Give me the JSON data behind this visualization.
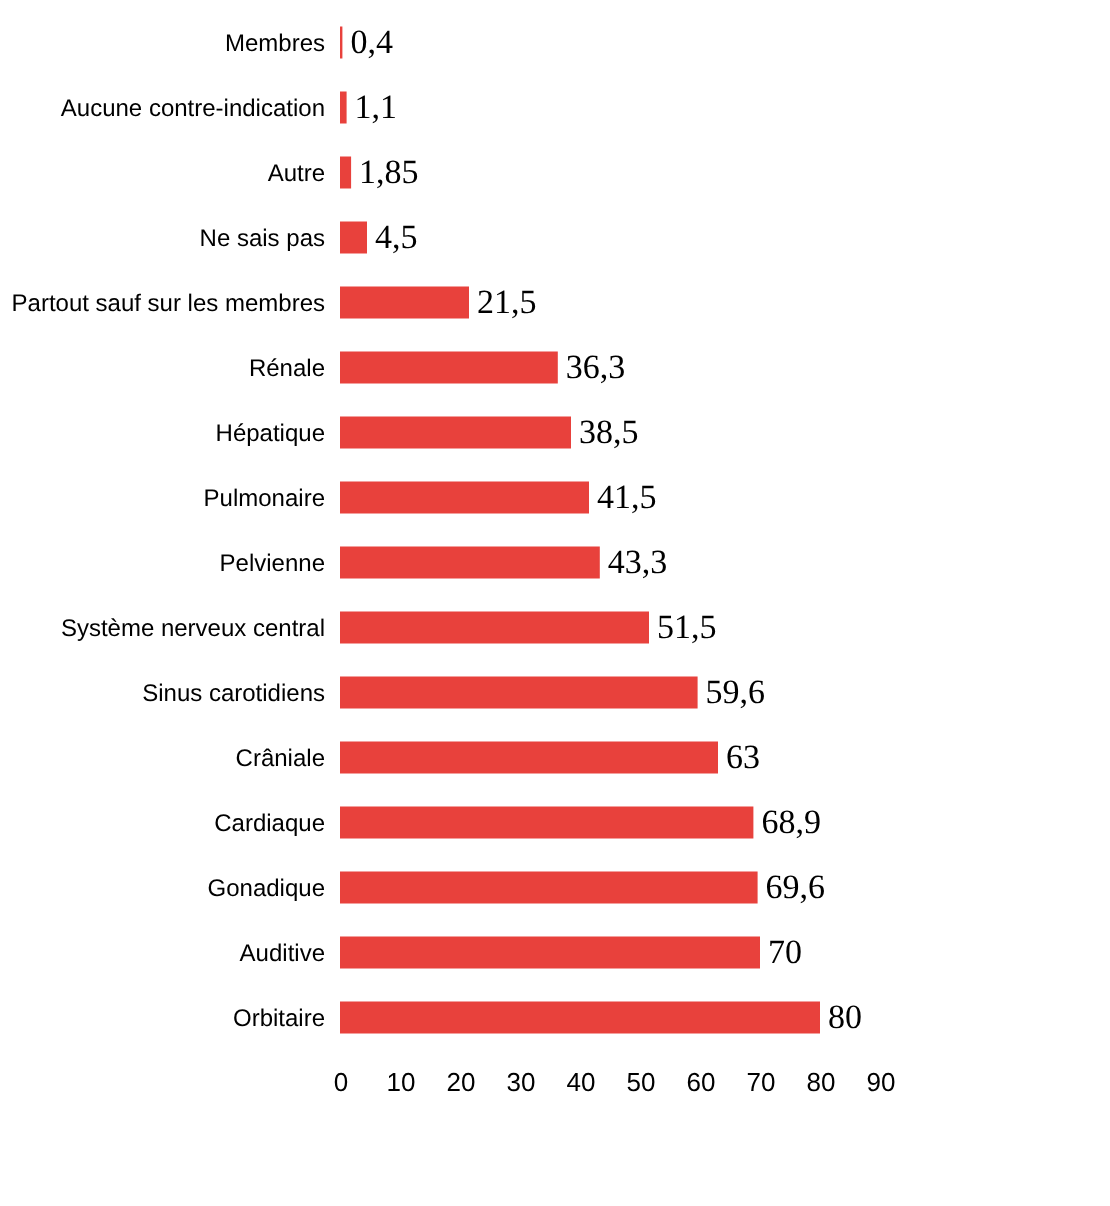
{
  "chart_data": {
    "type": "bar",
    "orientation": "horizontal",
    "categories": [
      "Membres",
      "Aucune contre-indication",
      "Autre",
      "Ne sais pas",
      "Partout sauf sur les membres",
      "Rénale",
      "Hépatique",
      "Pulmonaire",
      "Pelvienne",
      "Système nerveux central",
      "Sinus carotidiens",
      "Crâniale",
      "Cardiaque",
      "Gonadique",
      "Auditive",
      "Orbitaire"
    ],
    "values": [
      0.4,
      1.1,
      1.85,
      4.5,
      21.5,
      36.3,
      38.5,
      41.5,
      43.3,
      51.5,
      59.6,
      63,
      68.9,
      69.6,
      70,
      80
    ],
    "value_labels": [
      "0,4",
      "1,1",
      "1,85",
      "4,5",
      "21,5",
      "36,3",
      "38,5",
      "41,5",
      "43,3",
      "51,5",
      "59,6",
      "63",
      "68,9",
      "69,6",
      "70",
      "80"
    ],
    "color": "#e8413c",
    "xlim": [
      0,
      90
    ],
    "xticks": [
      0,
      10,
      20,
      30,
      40,
      50,
      60,
      70,
      80,
      90
    ],
    "grid": false
  }
}
